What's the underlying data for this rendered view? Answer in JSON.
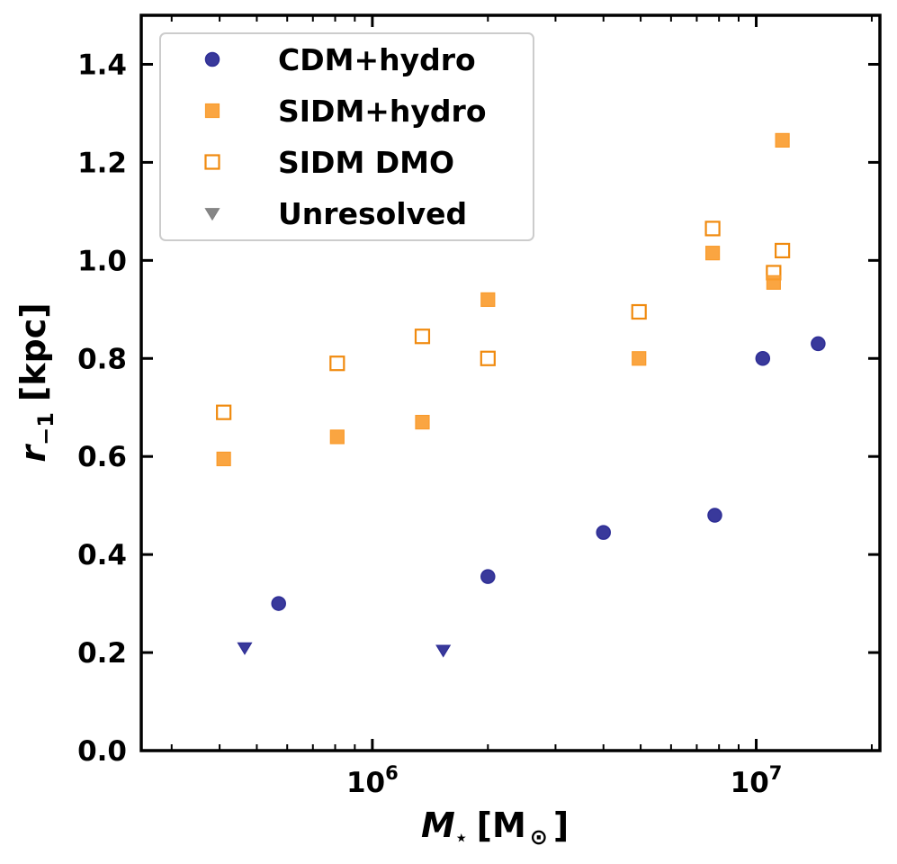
{
  "chart_data": {
    "type": "scatter",
    "title": "",
    "xlabel_main": "M",
    "xlabel_sub": "⋆",
    "xlabel_unit": "[M",
    "xlabel_unit_sub": "⊙",
    "xlabel_close": "]",
    "ylabel_main": "r",
    "ylabel_sub": "−1",
    "ylabel_unit": "[kpc]",
    "xscale": "log",
    "xlim": [
      250000,
      21000000
    ],
    "ylim": [
      0.0,
      1.5
    ],
    "grid": false,
    "legend_position": "top-left",
    "yticks": [
      "0.0",
      "0.2",
      "0.4",
      "0.6",
      "0.8",
      "1.0",
      "1.2",
      "1.4"
    ],
    "xticks": [
      {
        "value": 1000000,
        "base": "10",
        "exp": "6"
      },
      {
        "value": 10000000,
        "base": "10",
        "exp": "7"
      }
    ],
    "series": [
      {
        "name": "CDM+hydro",
        "marker": "circle",
        "color": "#2e2e96",
        "filled": true,
        "points": [
          {
            "x": 570000,
            "y": 0.3
          },
          {
            "x": 2000000,
            "y": 0.355
          },
          {
            "x": 4000000,
            "y": 0.445
          },
          {
            "x": 7800000,
            "y": 0.48
          },
          {
            "x": 10400000,
            "y": 0.8
          },
          {
            "x": 14500000,
            "y": 0.83
          }
        ]
      },
      {
        "name": "SIDM+hydro",
        "marker": "square",
        "color": "#f99b2c",
        "filled": true,
        "points": [
          {
            "x": 410000,
            "y": 0.595
          },
          {
            "x": 810000,
            "y": 0.64
          },
          {
            "x": 1350000,
            "y": 0.67
          },
          {
            "x": 2000000,
            "y": 0.92
          },
          {
            "x": 4950000,
            "y": 0.8
          },
          {
            "x": 7700000,
            "y": 1.015
          },
          {
            "x": 11100000,
            "y": 0.955
          },
          {
            "x": 11700000,
            "y": 1.245
          }
        ]
      },
      {
        "name": "SIDM DMO",
        "marker": "square",
        "color": "#f08a0e",
        "filled": false,
        "points": [
          {
            "x": 410000,
            "y": 0.69
          },
          {
            "x": 810000,
            "y": 0.79
          },
          {
            "x": 1350000,
            "y": 0.845
          },
          {
            "x": 2000000,
            "y": 0.8
          },
          {
            "x": 4950000,
            "y": 0.895
          },
          {
            "x": 7700000,
            "y": 1.065
          },
          {
            "x": 11100000,
            "y": 0.975
          },
          {
            "x": 11700000,
            "y": 1.02
          }
        ]
      },
      {
        "name": "Unresolved",
        "marker": "triangle-down",
        "color": "#2e2e96",
        "legend_color": "#808080",
        "filled": true,
        "points": [
          {
            "x": 465000,
            "y": 0.21
          },
          {
            "x": 1530000,
            "y": 0.205
          }
        ]
      }
    ]
  }
}
